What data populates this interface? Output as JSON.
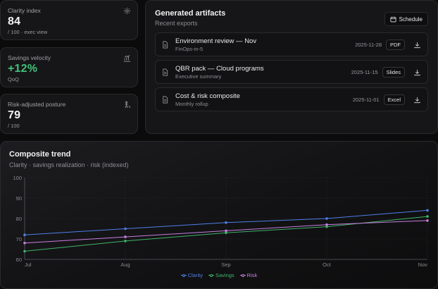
{
  "kpis": [
    {
      "label": "Clarity index",
      "value": "84",
      "sub": "/ 100 · exec view",
      "icon": "gear-icon"
    },
    {
      "label": "Savings velocity",
      "value": "+12%",
      "sub": "QoQ",
      "icon": "trend-chart-icon",
      "value_color": "#43c07a"
    },
    {
      "label": "Risk-adjusted posture",
      "value": "79",
      "sub": "/ 100",
      "icon": "posture-icon"
    }
  ],
  "artifacts": {
    "title": "Generated artifacts",
    "subtitle": "Recent exports",
    "schedule_label": "Schedule",
    "items": [
      {
        "name": "Environment review — Nov",
        "desc": "FinOps-in-5",
        "date": "2025-11-28",
        "format": "PDF"
      },
      {
        "name": "QBR pack — Cloud programs",
        "desc": "Executive summary",
        "date": "2025-11-15",
        "format": "Slides"
      },
      {
        "name": "Cost & risk composite",
        "desc": "Monthly rollup",
        "date": "2025-11-01",
        "format": "Excel"
      }
    ]
  },
  "trend": {
    "title": "Composite trend",
    "subtitle": "Clarity · savings realization · risk (indexed)"
  },
  "colors": {
    "clarity": "#4f7fe8",
    "savings": "#3fb56a",
    "risk": "#c77ee0",
    "grid": "#2a2a2e",
    "axis": "#8a8a90"
  },
  "chart_data": {
    "type": "line",
    "x": [
      "Jul",
      "Aug",
      "Sep",
      "Oct",
      "Nov"
    ],
    "ylim": [
      60,
      100
    ],
    "yticks": [
      60,
      70,
      80,
      90,
      100
    ],
    "legend_position": "bottom-center",
    "grid": true,
    "series": [
      {
        "name": "Clarity",
        "values": [
          72,
          75,
          78,
          80,
          84
        ]
      },
      {
        "name": "Savings",
        "values": [
          64,
          69,
          73,
          76,
          81
        ]
      },
      {
        "name": "Risk",
        "values": [
          68,
          71,
          74,
          77,
          79
        ]
      }
    ]
  }
}
